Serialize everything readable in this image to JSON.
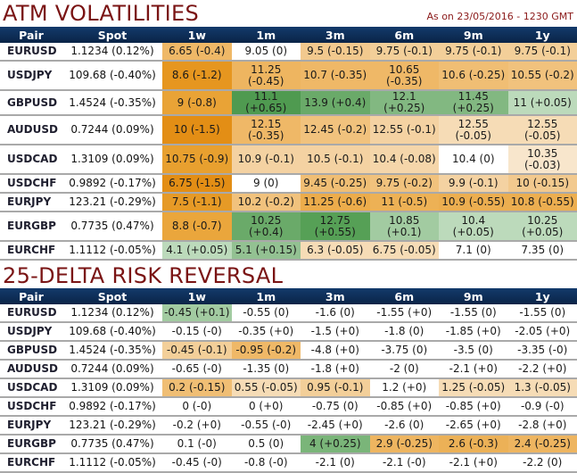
{
  "atm": {
    "title": "ATM VOLATILITIES",
    "as_of": "As on 23/05/2016 - 1230 GMT",
    "headers": [
      "Pair",
      "Spot",
      "1w",
      "1m",
      "3m",
      "6m",
      "9m",
      "1y"
    ],
    "rows": [
      {
        "pair": "EURUSD",
        "spot": "1.1234 (0.12%)",
        "cells": [
          [
            "6.65 (-0.4)",
            "#efb867"
          ],
          [
            "9.05 (0)",
            "#ffffff"
          ],
          [
            "9.5 (-0.15)",
            "#f2c98e"
          ],
          [
            "9.75 (-0.1)",
            "#f3cf99"
          ],
          [
            "9.75 (-0.1)",
            "#f3cf99"
          ],
          [
            "9.75 (-0.1)",
            "#f3cf99"
          ]
        ]
      },
      {
        "pair": "USDJPY",
        "spot": "109.68 (-0.40%)",
        "cells": [
          [
            "8.6 (-1.2)",
            "#e6961f"
          ],
          [
            "11.25 (-0.45)",
            "#eeb560"
          ],
          [
            "10.7 (-0.35)",
            "#efb867"
          ],
          [
            "10.65 (-0.35)",
            "#efb867"
          ],
          [
            "10.6 (-0.25)",
            "#f0be74"
          ],
          [
            "10.55 (-0.2)",
            "#f1c27d"
          ]
        ]
      },
      {
        "pair": "GBPUSD",
        "spot": "1.4524 (-0.35%)",
        "cells": [
          [
            "9 (-0.8)",
            "#e9a336"
          ],
          [
            "11.1 (+0.65)",
            "#4f9a50"
          ],
          [
            "13.9 (+0.4)",
            "#6aaa69"
          ],
          [
            "12.1 (+0.25)",
            "#82b881"
          ],
          [
            "11.45 (+0.25)",
            "#82b881"
          ],
          [
            "11 (+0.05)",
            "#bcdabb"
          ]
        ]
      },
      {
        "pair": "AUDUSD",
        "spot": "0.7244 (0.09%)",
        "cells": [
          [
            "10 (-1.5)",
            "#e38e15"
          ],
          [
            "12.15 (-0.35)",
            "#efb867"
          ],
          [
            "12.45 (-0.2)",
            "#f1c27d"
          ],
          [
            "12.55 (-0.1)",
            "#f4d2a2"
          ],
          [
            "12.55 (-0.05)",
            "#f6dcb6"
          ],
          [
            "12.55 (-0.05)",
            "#f6dcb6"
          ]
        ]
      },
      {
        "pair": "USDCAD",
        "spot": "1.3109 (0.09%)",
        "cells": [
          [
            "10.75 (-0.9)",
            "#e8a02f"
          ],
          [
            "10.9 (-0.1)",
            "#f4d2a2"
          ],
          [
            "10.5 (-0.1)",
            "#f4d2a2"
          ],
          [
            "10.4 (-0.08)",
            "#f5d6aa"
          ],
          [
            "10.4 (0)",
            "#ffffff"
          ],
          [
            "10.35 (-0.03)",
            "#f8e6cc"
          ]
        ]
      },
      {
        "pair": "USDCHF",
        "spot": "0.9892 (-0.17%)",
        "cells": [
          [
            "6.75 (-1.5)",
            "#e38e15"
          ],
          [
            "9 (0)",
            "#ffffff"
          ],
          [
            "9.45 (-0.25)",
            "#f0be74"
          ],
          [
            "9.75 (-0.2)",
            "#f1c27d"
          ],
          [
            "9.9 (-0.1)",
            "#f4d2a2"
          ],
          [
            "10 (-0.15)",
            "#f2c98e"
          ]
        ]
      },
      {
        "pair": "EURJPY",
        "spot": "123.21 (-0.29%)",
        "cells": [
          [
            "7.5 (-1.1)",
            "#e69a26"
          ],
          [
            "10.2 (-0.2)",
            "#f1c27d"
          ],
          [
            "11.25 (-0.6)",
            "#ecac4b"
          ],
          [
            "11 (-0.5)",
            "#edb155"
          ],
          [
            "10.9 (-0.55)",
            "#ecae50"
          ],
          [
            "10.8 (-0.55)",
            "#ecae50"
          ]
        ]
      },
      {
        "pair": "EURGBP",
        "spot": "0.7735 (0.47%)",
        "cells": [
          [
            "8.8 (-0.7)",
            "#eaa63c"
          ],
          [
            "10.25 (+0.4)",
            "#6aaa69"
          ],
          [
            "12.75 (+0.55)",
            "#56a056"
          ],
          [
            "10.85 (+0.1)",
            "#a2cba1"
          ],
          [
            "10.4 (+0.05)",
            "#bcdabb"
          ],
          [
            "10.25 (+0.05)",
            "#bcdabb"
          ]
        ]
      },
      {
        "pair": "EURCHF",
        "spot": "1.1112 (-0.05%)",
        "cells": [
          [
            "4.1 (+0.05)",
            "#bcdabb"
          ],
          [
            "5.1 (+0.15)",
            "#93c192"
          ],
          [
            "6.3 (-0.05)",
            "#f6dcb6"
          ],
          [
            "6.75 (-0.05)",
            "#f6dcb6"
          ],
          [
            "7.1 (0)",
            "#ffffff"
          ],
          [
            "7.35 (0)",
            "#ffffff"
          ]
        ]
      }
    ]
  },
  "rr": {
    "title": "25-DELTA RISK REVERSAL",
    "headers": [
      "Pair",
      "Spot",
      "1w",
      "1m",
      "3m",
      "6m",
      "9m",
      "1y"
    ],
    "rows": [
      {
        "pair": "EURUSD",
        "spot": "1.1234 (0.12%)",
        "cells": [
          [
            "-0.45 (+0.1)",
            "#a2cba1"
          ],
          [
            "-0.55 (0)",
            "#ffffff"
          ],
          [
            "-1.6 (0)",
            "#ffffff"
          ],
          [
            "-1.55 (+0)",
            "#ffffff"
          ],
          [
            "-1.55 (0)",
            "#ffffff"
          ],
          [
            "-1.55 (0)",
            "#ffffff"
          ]
        ]
      },
      {
        "pair": "USDJPY",
        "spot": "109.68 (-0.40%)",
        "cells": [
          [
            "-0.15 (-0)",
            "#ffffff"
          ],
          [
            "-0.35 (+0)",
            "#ffffff"
          ],
          [
            "-1.5 (+0)",
            "#ffffff"
          ],
          [
            "-1.8 (0)",
            "#ffffff"
          ],
          [
            "-1.85 (+0)",
            "#ffffff"
          ],
          [
            "-2.05 (+0)",
            "#ffffff"
          ]
        ]
      },
      {
        "pair": "GBPUSD",
        "spot": "1.4524 (-0.35%)",
        "cells": [
          [
            "-0.45 (-0.1)",
            "#f3cf99"
          ],
          [
            "-0.95 (-0.2)",
            "#efb867"
          ],
          [
            "-4.8 (+0)",
            "#ffffff"
          ],
          [
            "-3.75 (0)",
            "#ffffff"
          ],
          [
            "-3.5 (0)",
            "#ffffff"
          ],
          [
            "-3.35 (-0)",
            "#ffffff"
          ]
        ]
      },
      {
        "pair": "AUDUSD",
        "spot": "0.7244 (0.09%)",
        "cells": [
          [
            "-0.65 (-0)",
            "#ffffff"
          ],
          [
            "-1.35 (0)",
            "#ffffff"
          ],
          [
            "-1.8 (+0)",
            "#ffffff"
          ],
          [
            "-2 (0)",
            "#ffffff"
          ],
          [
            "-2.1 (+0)",
            "#ffffff"
          ],
          [
            "-2.2 (+0)",
            "#ffffff"
          ]
        ]
      },
      {
        "pair": "USDCAD",
        "spot": "1.3109 (0.09%)",
        "cells": [
          [
            "0.2 (-0.15)",
            "#f0be74"
          ],
          [
            "0.55 (-0.05)",
            "#f6dcb6"
          ],
          [
            "0.95 (-0.1)",
            "#f3cf99"
          ],
          [
            "1.2 (+0)",
            "#ffffff"
          ],
          [
            "1.25 (-0.05)",
            "#f6dcb6"
          ],
          [
            "1.3 (-0.05)",
            "#f6dcb6"
          ]
        ]
      },
      {
        "pair": "USDCHF",
        "spot": "0.9892 (-0.17%)",
        "cells": [
          [
            "0 (-0)",
            "#ffffff"
          ],
          [
            "0 (+0)",
            "#ffffff"
          ],
          [
            "-0.75 (0)",
            "#ffffff"
          ],
          [
            "-0.85 (+0)",
            "#ffffff"
          ],
          [
            "-0.85 (+0)",
            "#ffffff"
          ],
          [
            "-0.9 (-0)",
            "#ffffff"
          ]
        ]
      },
      {
        "pair": "EURJPY",
        "spot": "123.21 (-0.29%)",
        "cells": [
          [
            "-0.2 (+0)",
            "#ffffff"
          ],
          [
            "-0.55 (-0)",
            "#ffffff"
          ],
          [
            "-2.45 (+0)",
            "#ffffff"
          ],
          [
            "-2.6 (0)",
            "#ffffff"
          ],
          [
            "-2.65 (+0)",
            "#ffffff"
          ],
          [
            "-2.8 (+0)",
            "#ffffff"
          ]
        ]
      },
      {
        "pair": "EURGBP",
        "spot": "0.7735 (0.47%)",
        "cells": [
          [
            "0.1 (-0)",
            "#ffffff"
          ],
          [
            "0.5 (0)",
            "#ffffff"
          ],
          [
            "4 (+0.25)",
            "#7ab579"
          ],
          [
            "2.9 (-0.25)",
            "#eeb560"
          ],
          [
            "2.6 (-0.3)",
            "#ecb157"
          ],
          [
            "2.4 (-0.25)",
            "#eeb560"
          ]
        ]
      },
      {
        "pair": "EURCHF",
        "spot": "1.1112 (-0.05%)",
        "cells": [
          [
            "-0.45 (-0)",
            "#ffffff"
          ],
          [
            "-0.8 (-0)",
            "#ffffff"
          ],
          [
            "-2.1 (0)",
            "#ffffff"
          ],
          [
            "-2.1 (-0)",
            "#ffffff"
          ],
          [
            "-2.1 (+0)",
            "#ffffff"
          ],
          [
            "-2.2 (0)",
            "#ffffff"
          ]
        ]
      }
    ]
  }
}
